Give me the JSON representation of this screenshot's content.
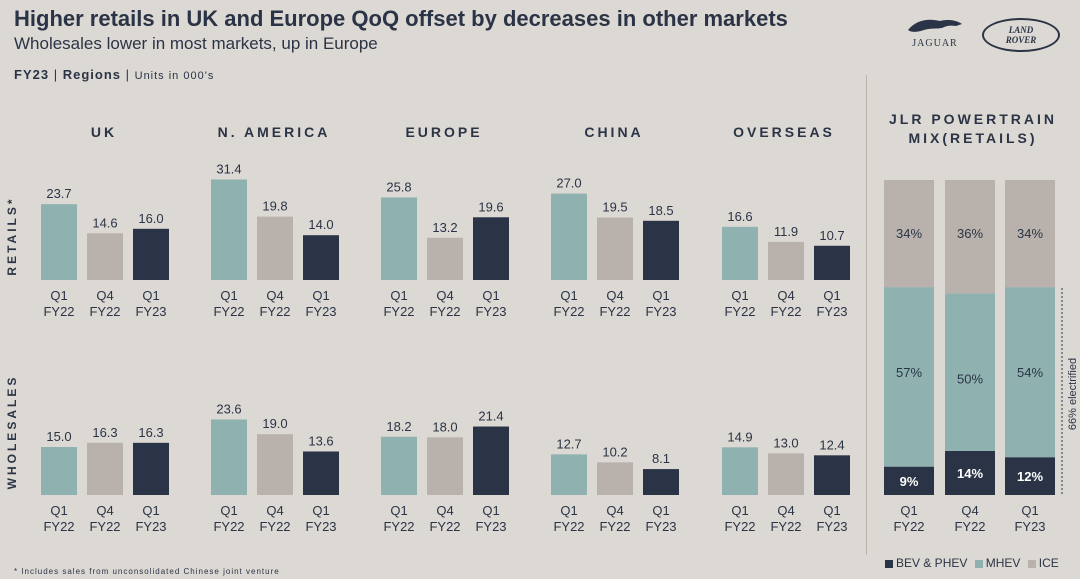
{
  "header": {
    "title": "Higher retails in UK and Europe QoQ offset by decreases in other markets",
    "subtitle": "Wholesales lower in most markets, up in Europe",
    "period": "FY23",
    "section": "Regions",
    "units": "Units in 000's"
  },
  "logos": {
    "jaguar": "JAGUAR",
    "land_rover": "LAND\nROVER"
  },
  "footnote": "* Includes sales from unconsolidated Chinese joint venture",
  "colors": {
    "q1fy22": "#8fb1b0",
    "q4fy22": "#b8b1ac",
    "q1fy23": "#2b3446",
    "bev": "#2b3446",
    "mhev": "#8fb1b0",
    "ice": "#b8b1ac",
    "background": "#dcd8d3"
  },
  "chart_data": [
    {
      "type": "bar",
      "row_labels": [
        "RETAILS*",
        "WHOLESALES"
      ],
      "categories": [
        "Q1 FY22",
        "Q4 FY22",
        "Q1 FY23"
      ],
      "regions": [
        {
          "name": "UK",
          "retails": [
            23.7,
            14.6,
            16.0
          ],
          "wholesales": [
            15.0,
            16.3,
            16.3
          ]
        },
        {
          "name": "N. AMERICA",
          "retails": [
            31.4,
            19.8,
            14.0
          ],
          "wholesales": [
            23.6,
            19.0,
            13.6
          ]
        },
        {
          "name": "EUROPE",
          "retails": [
            25.8,
            13.2,
            19.6
          ],
          "wholesales": [
            18.2,
            18.0,
            21.4
          ]
        },
        {
          "name": "CHINA",
          "retails": [
            27.0,
            19.5,
            18.5
          ],
          "wholesales": [
            12.7,
            10.2,
            8.1
          ]
        },
        {
          "name": "OVERSEAS",
          "retails": [
            16.6,
            11.9,
            10.7
          ],
          "wholesales": [
            14.9,
            13.0,
            12.4
          ]
        }
      ]
    },
    {
      "type": "bar",
      "stacked": true,
      "title": "JLR POWERTRAIN MIX(RETAILS)",
      "categories": [
        "Q1 FY22",
        "Q4 FY22",
        "Q1 FY23"
      ],
      "series": [
        {
          "name": "BEV & PHEV",
          "values": [
            9,
            14,
            12
          ]
        },
        {
          "name": "MHEV",
          "values": [
            57,
            50,
            54
          ]
        },
        {
          "name": "ICE",
          "values": [
            34,
            36,
            34
          ]
        }
      ],
      "annotation": "66% electrified"
    }
  ]
}
